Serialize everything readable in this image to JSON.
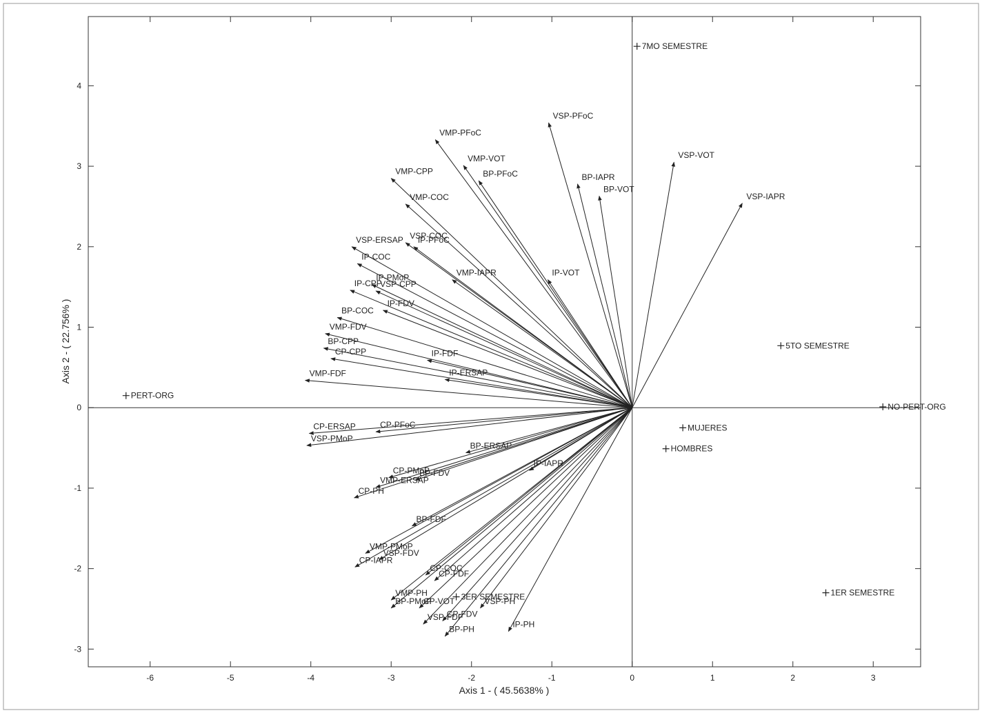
{
  "chart_data": {
    "type": "biplot",
    "xlabel": "Axis 1 - ( 45.5638% )",
    "ylabel": "Axis 2 - ( 22.756% )",
    "xlim": [
      -6.77,
      3.59
    ],
    "ylim": [
      -3.22,
      4.86
    ],
    "xticks": [
      -6,
      -5,
      -4,
      -3,
      -2,
      -1,
      0,
      1,
      2,
      3
    ],
    "yticks": [
      -3,
      -2,
      -1,
      0,
      1,
      2,
      3,
      4
    ],
    "color": "#222222",
    "vectors": [
      {
        "name": "VMP-PFoC",
        "x": -2.45,
        "y": 3.33
      },
      {
        "name": "VMP-VOT",
        "x": -2.1,
        "y": 3.01
      },
      {
        "name": "BP-PFoC",
        "x": -1.91,
        "y": 2.82
      },
      {
        "name": "VMP-CPP",
        "x": -3.0,
        "y": 2.85
      },
      {
        "name": "VMP-COC",
        "x": -2.82,
        "y": 2.53
      },
      {
        "name": "VSP-PFoC",
        "x": -1.04,
        "y": 3.54
      },
      {
        "name": "BP-IAPR",
        "x": -0.68,
        "y": 2.78
      },
      {
        "name": "BP-VOT",
        "x": -0.41,
        "y": 2.63
      },
      {
        "name": "VSP-VOT",
        "x": 0.52,
        "y": 3.05
      },
      {
        "name": "VSP-IAPR",
        "x": 1.37,
        "y": 2.54
      },
      {
        "name": "IP-VOT",
        "x": -1.05,
        "y": 1.59
      },
      {
        "name": "VSP-ERSAP",
        "x": -3.49,
        "y": 2.0
      },
      {
        "name": "VSP-COC",
        "x": -2.82,
        "y": 2.05
      },
      {
        "name": "IP-PFoC",
        "x": -2.72,
        "y": 2.0
      },
      {
        "name": "IP-COC",
        "x": -3.42,
        "y": 1.79
      },
      {
        "name": "VMP-IAPR",
        "x": -2.24,
        "y": 1.59
      },
      {
        "name": "IP-PMoP",
        "x": -3.24,
        "y": 1.53
      },
      {
        "name": "IP-CPP",
        "x": -3.51,
        "y": 1.46
      },
      {
        "name": "VSP-CPP",
        "x": -3.19,
        "y": 1.45
      },
      {
        "name": "IP-FDV",
        "x": -3.1,
        "y": 1.21
      },
      {
        "name": "BP-COC",
        "x": -3.67,
        "y": 1.12
      },
      {
        "name": "VMP-FDV",
        "x": -3.82,
        "y": 0.92
      },
      {
        "name": "BP-CPP",
        "x": -3.84,
        "y": 0.74
      },
      {
        "name": "CP-CPP",
        "x": -3.75,
        "y": 0.61
      },
      {
        "name": "IP-FDF",
        "x": -2.55,
        "y": 0.59
      },
      {
        "name": "IP-ERSAP",
        "x": -2.33,
        "y": 0.35
      },
      {
        "name": "VMP-FDF",
        "x": -4.07,
        "y": 0.34
      },
      {
        "name": "CP-ERSAP",
        "x": -4.02,
        "y": -0.32
      },
      {
        "name": "CP-PFoC",
        "x": -3.19,
        "y": -0.3
      },
      {
        "name": "VSP-PMoP",
        "x": -4.05,
        "y": -0.47
      },
      {
        "name": "BP-ERSAP",
        "x": -2.07,
        "y": -0.56
      },
      {
        "name": "CP-PMoP",
        "x": -3.03,
        "y": -0.87
      },
      {
        "name": "IP-IAPR",
        "x": -1.28,
        "y": -0.78
      },
      {
        "name": "VMP-ERSAP",
        "x": -3.19,
        "y": -0.99
      },
      {
        "name": "BP-FDV",
        "x": -2.7,
        "y": -0.9
      },
      {
        "name": "CP-PH",
        "x": -3.46,
        "y": -1.12
      },
      {
        "name": "BP-FDF",
        "x": -2.74,
        "y": -1.47
      },
      {
        "name": "VMP-PMoP",
        "x": -3.32,
        "y": -1.81
      },
      {
        "name": "CP-IAPR",
        "x": -3.45,
        "y": -1.98
      },
      {
        "name": "VSP-FDV",
        "x": -3.15,
        "y": -1.89
      },
      {
        "name": "CP-COC",
        "x": -2.57,
        "y": -2.08
      },
      {
        "name": "CP-FDF",
        "x": -2.46,
        "y": -2.15
      },
      {
        "name": "VMP-PH",
        "x": -3.0,
        "y": -2.39
      },
      {
        "name": "BP-PMoP",
        "x": -3.0,
        "y": -2.49
      },
      {
        "name": "CP-VOT",
        "x": -2.65,
        "y": -2.49
      },
      {
        "name": "VSP-FDF",
        "x": -2.6,
        "y": -2.69
      },
      {
        "name": "CP-FDV",
        "x": -2.36,
        "y": -2.65
      },
      {
        "name": "VSP-PH",
        "x": -1.89,
        "y": -2.49
      },
      {
        "name": "BP-PH",
        "x": -2.33,
        "y": -2.84
      },
      {
        "name": "IP-PH",
        "x": -1.54,
        "y": -2.78
      }
    ],
    "points": [
      {
        "name": "7MO SEMESTRE",
        "x": 0.06,
        "y": 4.49
      },
      {
        "name": "5TO SEMESTRE",
        "x": 1.85,
        "y": 0.77
      },
      {
        "name": "NO-PERT-ORG",
        "x": 3.12,
        "y": 0.01
      },
      {
        "name": "MUJERES",
        "x": 0.63,
        "y": -0.25
      },
      {
        "name": "HOMBRES",
        "x": 0.42,
        "y": -0.51
      },
      {
        "name": "1ER SEMESTRE",
        "x": 2.41,
        "y": -2.3
      },
      {
        "name": "3ER SEMESTRE",
        "x": -2.19,
        "y": -2.35
      },
      {
        "name": "PERT-ORG",
        "x": -6.3,
        "y": 0.15
      }
    ]
  }
}
